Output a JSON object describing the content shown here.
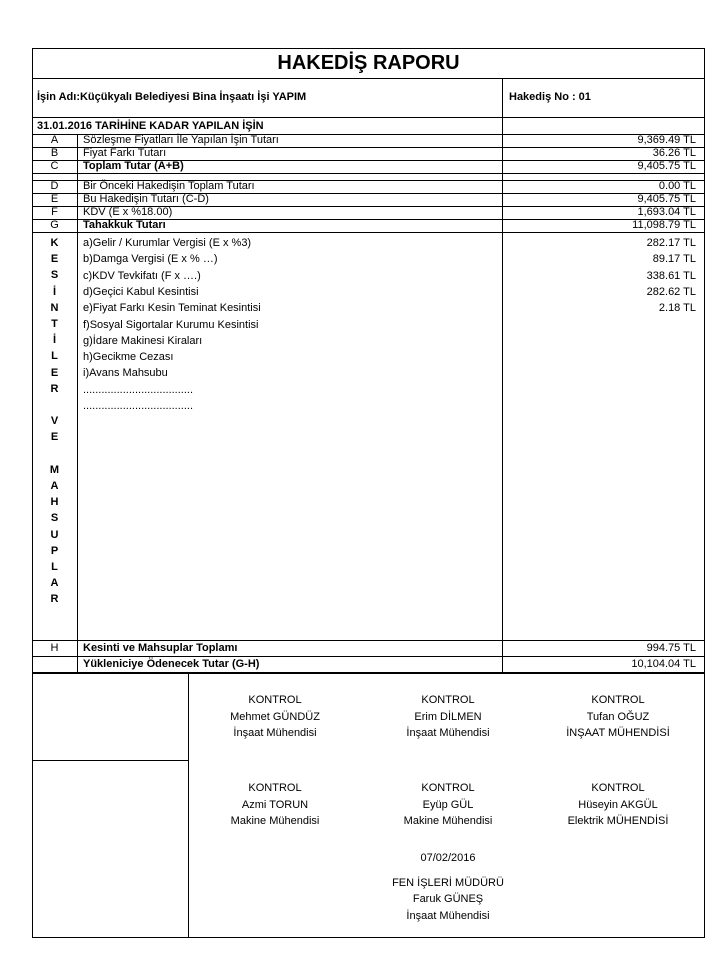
{
  "title": "HAKEDİŞ RAPORU",
  "job_name": "İşin Adı:Küçükyalı Belediyesi Bina İnşaatı İşi YAPIM",
  "hakedis_no": "Hakediş No : 01",
  "section_header": "31.01.2016 TARİHİNE KADAR YAPILAN İŞİN",
  "rows_top": [
    {
      "letter": "A",
      "label": "Sözleşme Fiyatları İle Yapılan İşin Tutarı",
      "value": "9,369.49 TL",
      "bold": false
    },
    {
      "letter": "B",
      "label": "Fiyat Farkı Tutarı",
      "value": "36.26 TL",
      "bold": false
    },
    {
      "letter": "C",
      "label": "Toplam Tutar (A+B)",
      "value": "9,405.75 TL",
      "bold": true
    }
  ],
  "rows_mid": [
    {
      "letter": "D",
      "label": "Bir Önceki Hakedişin Toplam Tutarı",
      "value": "0.00 TL",
      "bold": false
    },
    {
      "letter": "E",
      "label": "Bu Hakedişin Tutarı (C-D)",
      "value": "9,405.75 TL",
      "bold": false
    },
    {
      "letter": "F",
      "label": "KDV (E x %18.00)",
      "value": "1,693.04 TL",
      "bold": false
    },
    {
      "letter": "G",
      "label": "Tahakkuk Tutarı",
      "value": "11,098.79 TL",
      "bold": true
    }
  ],
  "kesintiler_letters": [
    "K",
    "E",
    "S",
    "İ",
    "N",
    "T",
    "İ",
    "L",
    "E",
    "R",
    "",
    "V",
    "E",
    "",
    "M",
    "A",
    "H",
    "S",
    "U",
    "P",
    "L",
    "A",
    "R"
  ],
  "deductions": [
    {
      "label": "a)Gelir / Kurumlar Vergisi (E x %3)",
      "value": "282.17 TL"
    },
    {
      "label": "b)Damga Vergisi (E x % …)",
      "value": "89.17 TL"
    },
    {
      "label": "c)KDV Tevkifatı (F x  ….)",
      "value": "338.61 TL"
    },
    {
      "label": "d)Geçici Kabul Kesintisi",
      "value": "282.62 TL"
    },
    {
      "label": "e)Fiyat Farkı Kesin Teminat Kesintisi",
      "value": "2.18 TL"
    },
    {
      "label": "f)Sosyal Sigortalar Kurumu Kesintisi",
      "value": ""
    },
    {
      "label": "g)İdare Makinesi Kiraları",
      "value": ""
    },
    {
      "label": "h)Gecikme Cezası",
      "value": ""
    },
    {
      "label": "i)Avans Mahsubu",
      "value": ""
    },
    {
      "label": "....................................",
      "value": ""
    },
    {
      "label": "....................................",
      "value": ""
    }
  ],
  "total_h": {
    "letter": "H",
    "label": "Kesinti ve Mahsuplar Toplamı",
    "value": "994.75 TL"
  },
  "payable": {
    "label": "Yükleniciye Ödenecek Tutar (G-H)",
    "value": "10,104.04 TL"
  },
  "signatures": [
    {
      "role": "KONTROL",
      "name": "Mehmet GÜNDÜZ",
      "title": "İnşaat Mühendisi"
    },
    {
      "role": "KONTROL",
      "name": "Erim DİLMEN",
      "title": "İnşaat Mühendisi"
    },
    {
      "role": "KONTROL",
      "name": "Tufan OĞUZ",
      "title": "İNŞAAT MÜHENDİSİ"
    },
    {
      "role": "KONTROL",
      "name": "Azmi TORUN",
      "title": "Makine Mühendisi"
    },
    {
      "role": "KONTROL",
      "name": "Eyüp GÜL",
      "title": "Makine Mühendisi"
    },
    {
      "role": "KONTROL",
      "name": "Hüseyin AKGÜL",
      "title": "Elektrik MÜHENDİSİ"
    }
  ],
  "approval": {
    "date": "07/02/2016",
    "role": "FEN İŞLERİ MÜDÜRÜ",
    "name": "Faruk GÜNEŞ",
    "title": "İnşaat Mühendisi"
  }
}
